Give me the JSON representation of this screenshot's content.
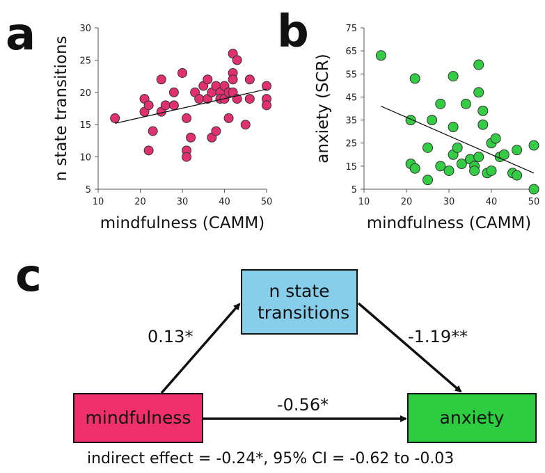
{
  "panels": {
    "a": "a",
    "b": "b",
    "c": "c"
  },
  "chart_data": [
    {
      "type": "scatter",
      "panel": "a",
      "xlabel": "mindfulness (CAMM)",
      "ylabel": "n state transitions",
      "xlim": [
        10,
        50
      ],
      "ylim": [
        5,
        30
      ],
      "xticks": [
        10,
        20,
        30,
        40,
        50
      ],
      "yticks": [
        5,
        10,
        15,
        20,
        25,
        30
      ],
      "grid": false,
      "marker_color": "#e0306f",
      "points": [
        [
          14,
          16
        ],
        [
          21,
          19
        ],
        [
          21,
          17
        ],
        [
          22,
          18
        ],
        [
          22,
          11
        ],
        [
          23,
          14
        ],
        [
          25,
          22
        ],
        [
          25,
          17
        ],
        [
          26,
          18
        ],
        [
          28,
          20
        ],
        [
          28,
          18
        ],
        [
          30,
          23
        ],
        [
          31,
          16
        ],
        [
          31,
          11
        ],
        [
          31,
          10
        ],
        [
          32,
          13
        ],
        [
          33,
          20
        ],
        [
          34,
          19
        ],
        [
          35,
          21
        ],
        [
          36,
          22
        ],
        [
          36,
          19
        ],
        [
          37,
          20
        ],
        [
          37,
          13
        ],
        [
          38,
          14
        ],
        [
          38,
          21
        ],
        [
          39,
          20
        ],
        [
          39,
          19
        ],
        [
          40,
          21
        ],
        [
          40,
          19
        ],
        [
          41,
          16
        ],
        [
          41,
          20
        ],
        [
          42,
          26
        ],
        [
          42,
          23
        ],
        [
          42,
          22
        ],
        [
          42,
          20
        ],
        [
          43,
          25
        ],
        [
          43,
          19
        ],
        [
          45,
          15
        ],
        [
          46,
          22
        ],
        [
          46,
          19
        ],
        [
          50,
          21
        ],
        [
          50,
          19
        ],
        [
          50,
          18
        ]
      ],
      "trendline": {
        "x": [
          14,
          50
        ],
        "y": [
          15.2,
          20.5
        ]
      }
    },
    {
      "type": "scatter",
      "panel": "b",
      "xlabel": "mindfulness (CAMM)",
      "ylabel": "anxiety (SCR)",
      "xlim": [
        10,
        50
      ],
      "ylim": [
        5,
        75
      ],
      "xticks": [
        10,
        20,
        30,
        40,
        50
      ],
      "yticks": [
        5,
        15,
        25,
        35,
        45,
        55,
        65,
        75
      ],
      "grid": false,
      "marker_color": "#33cc44",
      "points": [
        [
          14,
          63
        ],
        [
          21,
          35
        ],
        [
          21,
          16
        ],
        [
          22,
          53
        ],
        [
          22,
          14
        ],
        [
          25,
          9
        ],
        [
          25,
          23
        ],
        [
          26,
          35
        ],
        [
          28,
          42
        ],
        [
          28,
          15
        ],
        [
          30,
          13
        ],
        [
          31,
          54
        ],
        [
          31,
          32
        ],
        [
          31,
          20
        ],
        [
          32,
          23
        ],
        [
          33,
          16
        ],
        [
          34,
          42
        ],
        [
          35,
          18
        ],
        [
          36,
          15
        ],
        [
          36,
          13
        ],
        [
          37,
          59
        ],
        [
          37,
          47
        ],
        [
          37,
          19
        ],
        [
          38,
          39
        ],
        [
          38,
          33
        ],
        [
          39,
          12
        ],
        [
          40,
          25
        ],
        [
          40,
          13
        ],
        [
          41,
          27
        ],
        [
          42,
          19
        ],
        [
          43,
          20
        ],
        [
          45,
          12
        ],
        [
          46,
          22
        ],
        [
          46,
          11
        ],
        [
          50,
          24
        ],
        [
          50,
          5
        ]
      ],
      "trendline": {
        "x": [
          14,
          50
        ],
        "y": [
          41,
          12
        ]
      }
    }
  ],
  "mediation": {
    "mediator_label": "n state transitions",
    "predictor_label": "mindfulness",
    "outcome_label": "anxiety",
    "path_a": "0.13*",
    "path_b": "-1.19**",
    "path_c": "-0.56*",
    "indirect": "indirect effect = -0.24*, 95% CI = -0.62 to -0.03",
    "colors": {
      "mediator": "#87ceeb",
      "predictor": "#f0306e",
      "outcome": "#2ecc40"
    }
  }
}
